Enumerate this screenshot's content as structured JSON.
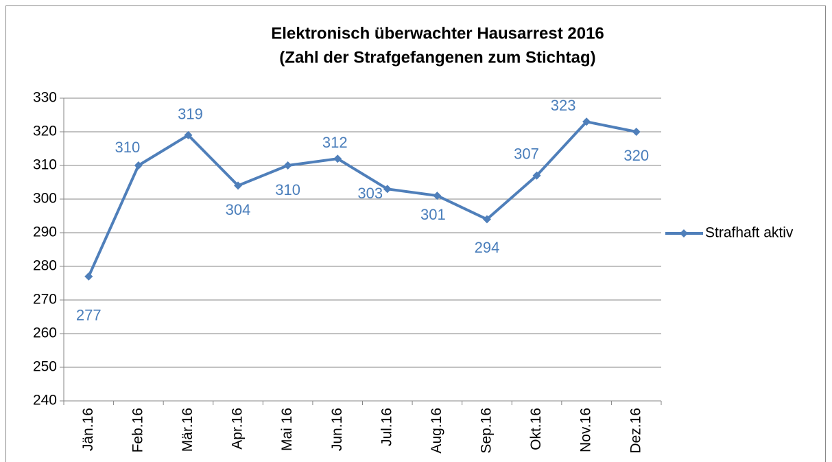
{
  "chart_data": {
    "type": "line",
    "title": "Elektronisch überwachter Hausarrest 2016",
    "subtitle": "(Zahl der Strafgefangenen zum Stichtag)",
    "categories": [
      "Jän.16",
      "Feb.16",
      "Mär.16",
      "Apr.16",
      "Mai 16",
      "Jun.16",
      "Jul.16",
      "Aug.16",
      "Sep.16",
      "Okt.16",
      "Nov.16",
      "Dez.16"
    ],
    "series": [
      {
        "name": "Strafhaft aktiv",
        "color": "#4f7fba",
        "values": [
          277,
          310,
          319,
          304,
          310,
          312,
          303,
          301,
          294,
          307,
          323,
          320
        ]
      }
    ],
    "ylim": [
      240,
      330
    ],
    "yticks": [
      240,
      250,
      260,
      270,
      280,
      290,
      300,
      310,
      320,
      330
    ],
    "grid": true,
    "legend": "right"
  }
}
